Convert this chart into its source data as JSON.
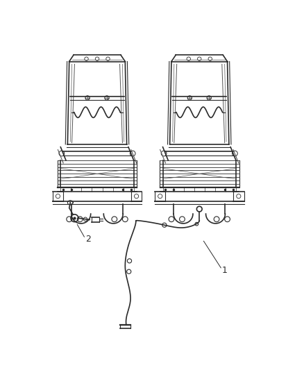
{
  "background_color": "#ffffff",
  "line_color": "#2a2a2a",
  "line_color_light": "#555555",
  "fig_width": 4.38,
  "fig_height": 5.33,
  "dpi": 100,
  "label_1": "1",
  "label_2": "2"
}
